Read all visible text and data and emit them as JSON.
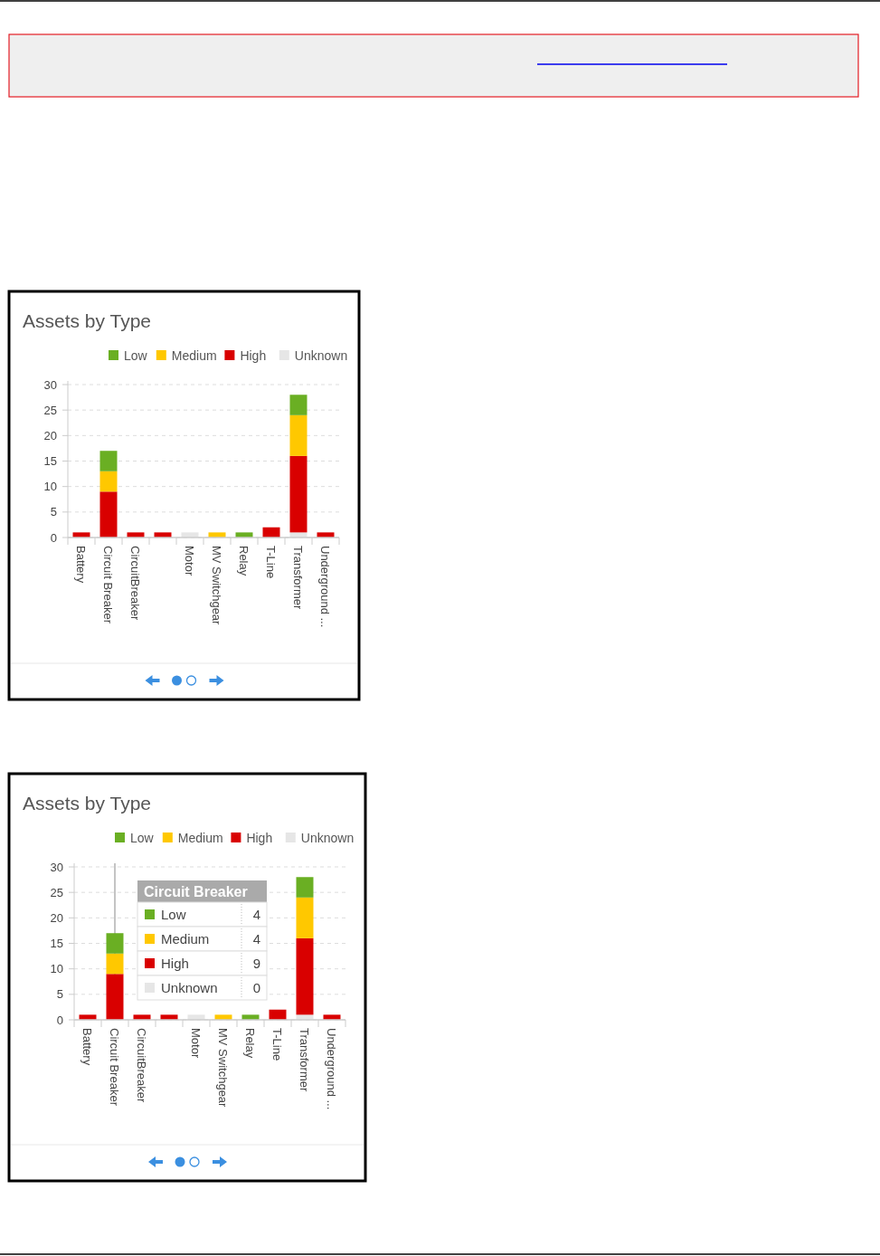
{
  "chart_data": [
    {
      "type": "bar",
      "stacked": true,
      "title": "Assets by Type",
      "legend": "top",
      "grid": "y",
      "ylim": [
        0,
        30
      ],
      "yticks": [
        0,
        5,
        10,
        15,
        20,
        25,
        30
      ],
      "categories": [
        "Battery",
        "Circuit Breaker",
        "CircuitBreaker",
        null,
        "Motor",
        "MV Switchgear",
        "Relay",
        "T-Line",
        "Transformer",
        "Underground ..."
      ],
      "series": [
        {
          "name": "Unknown",
          "color": "#e6e6e6",
          "values": [
            0,
            0,
            0,
            0,
            1,
            0,
            0,
            0,
            1,
            0
          ]
        },
        {
          "name": "High",
          "color": "#d90000",
          "values": [
            1,
            9,
            1,
            1,
            0,
            0,
            0,
            2,
            15,
            1
          ]
        },
        {
          "name": "Medium",
          "color": "#ffc800",
          "values": [
            0,
            4,
            0,
            0,
            0,
            1,
            0,
            0,
            8,
            0
          ]
        },
        {
          "name": "Low",
          "color": "#6aaf23",
          "values": [
            0,
            4,
            0,
            0,
            0,
            0,
            1,
            0,
            4,
            0
          ]
        }
      ]
    },
    {
      "type": "bar",
      "stacked": true,
      "title": "Assets by Type",
      "legend": "top",
      "grid": "y",
      "ylim": [
        0,
        30
      ],
      "yticks": [
        0,
        5,
        10,
        15,
        20,
        25,
        30
      ],
      "categories": [
        "Battery",
        "Circuit Breaker",
        "CircuitBreaker",
        null,
        "Motor",
        "MV Switchgear",
        "Relay",
        "T-Line",
        "Transformer",
        "Underground ..."
      ],
      "series": [
        {
          "name": "Unknown",
          "color": "#e6e6e6",
          "values": [
            0,
            0,
            0,
            0,
            1,
            0,
            0,
            0,
            1,
            0
          ]
        },
        {
          "name": "High",
          "color": "#d90000",
          "values": [
            1,
            9,
            1,
            1,
            0,
            0,
            0,
            2,
            15,
            1
          ]
        },
        {
          "name": "Medium",
          "color": "#ffc800",
          "values": [
            0,
            4,
            0,
            0,
            0,
            1,
            0,
            0,
            8,
            0
          ]
        },
        {
          "name": "Low",
          "color": "#6aaf23",
          "values": [
            0,
            4,
            0,
            0,
            0,
            0,
            1,
            0,
            4,
            0
          ]
        }
      ],
      "ref_lines": [
        {
          "axis": "x",
          "value": "Circuit Breaker",
          "color": "#b0b0b0"
        }
      ],
      "annotations": [
        "Circuit Breaker",
        "Low",
        "4",
        "Medium",
        "4",
        "High",
        "9",
        "Unknown",
        "0"
      ]
    }
  ]
}
